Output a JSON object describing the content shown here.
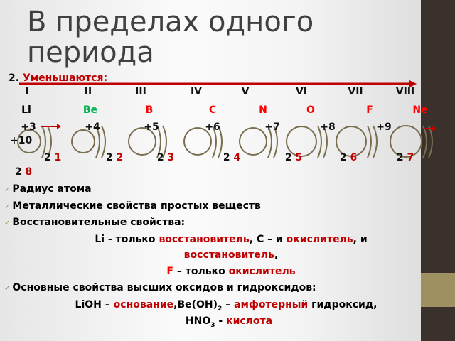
{
  "title": "В пределах одного периода",
  "heading": {
    "number": "2.",
    "label": "Уменьшаются:"
  },
  "groups": [
    "I",
    "II",
    "III",
    "IV",
    "V",
    "VI",
    "VII",
    "VIII"
  ],
  "elements": [
    {
      "symbol": "Li",
      "charge": "+3",
      "inner": "2",
      "outer": "1",
      "color": "#000000"
    },
    {
      "symbol": "Be",
      "charge": "+4",
      "inner": "2",
      "outer": "2",
      "color": "#00b050"
    },
    {
      "symbol": "B",
      "charge": "+5",
      "inner": "2",
      "outer": "3",
      "color": "#ff0000"
    },
    {
      "symbol": "C",
      "charge": "+6",
      "inner": "2",
      "outer": "4",
      "color": "#ff0000"
    },
    {
      "symbol": "N",
      "charge": "+7",
      "inner": "2",
      "outer": "5",
      "color": "#ff0000"
    },
    {
      "symbol": "O",
      "charge": "+8",
      "inner": "2",
      "outer": "6",
      "color": "#ff0000"
    },
    {
      "symbol": "F",
      "charge": "+9",
      "inner": "2",
      "outer": "7",
      "color": "#ff0000"
    },
    {
      "symbol": "Ne",
      "charge": "+10",
      "inner": "2",
      "outer": "8",
      "color": "#ff0000"
    }
  ],
  "bullets": [
    "Радиус атома",
    "Металлические свойства простых веществ",
    "Восстановительные свойства:",
    "Основные свойства высших оксидов и гидроксидов:"
  ],
  "lines": {
    "l1": {
      "a": "Li - только ",
      "b": "восстановитель",
      "c": ", C – и ",
      "d": "окислитель",
      "e": ", и"
    },
    "l2": {
      "a": "восстановитель",
      "b": ","
    },
    "l3": {
      "a": "F",
      "b": " – только ",
      "c": "окислитель"
    },
    "l4": {
      "a": "LiOH – ",
      "b": "основание",
      "c": ",Be(OH)",
      "sub": "2",
      "d": " – ",
      "e": "амфотерный",
      "f": " гидроксид,"
    },
    "l5": {
      "a": "HNO",
      "sub": "3",
      "b": " - ",
      "c": "кислота"
    }
  },
  "colors": {
    "accent": "#c00000",
    "sidebar": "#3a312c",
    "gold": "#9e9060",
    "shell": "#7a6e4e"
  }
}
